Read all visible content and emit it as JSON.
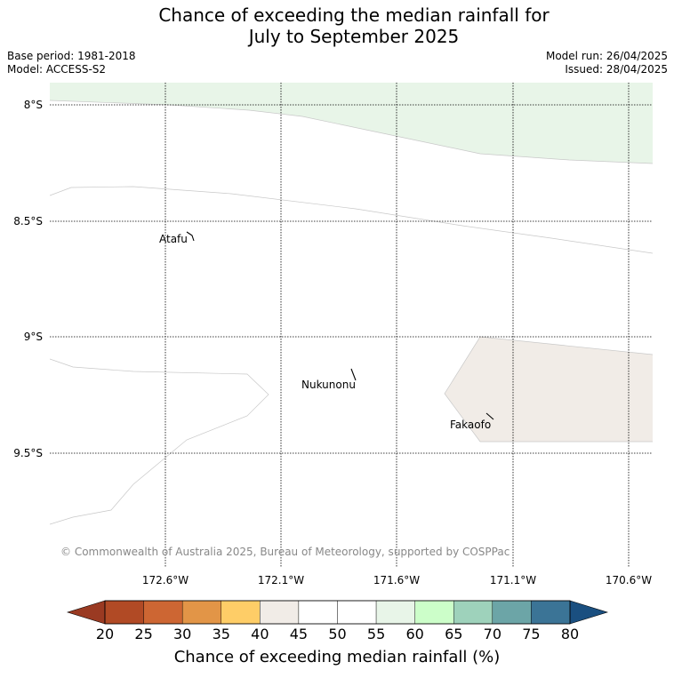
{
  "title_line1": "Chance of exceeding the median rainfall for",
  "title_line2": "July to September 2025",
  "base_period": "Base period: 1981-2018",
  "model": "Model: ACCESS-S2",
  "model_run": "Model run: 26/04/2025",
  "issued": "Issued: 28/04/2025",
  "lat_labels": [
    "8°S",
    "8.5°S",
    "9°S",
    "9.5°S"
  ],
  "lon_labels": [
    "172.6°W",
    "172.1°W",
    "171.6°W",
    "171.1°W",
    "170.6°W"
  ],
  "places": [
    "Atafu",
    "Nukunonu",
    "Fakaofo"
  ],
  "copyright": "© Commonwealth of Australia 2025, Bureau of Meteorology, supported by COSPPac",
  "colorbar": {
    "ticks": [
      "20",
      "25",
      "30",
      "35",
      "40",
      "45",
      "50",
      "55",
      "60",
      "65",
      "70",
      "75",
      "80"
    ],
    "label": "Chance of exceeding median rainfall (%)",
    "under_color": "#9a3a22",
    "over_color": "#1a4f80",
    "colors": [
      "#b14a25",
      "#cd6633",
      "#e29547",
      "#fecd67",
      "#f1ece7",
      "#ffffff",
      "#ffffff",
      "#e8f5e8",
      "#ccfec9",
      "#9ed2bb",
      "#6ca5a7",
      "#3b7496"
    ]
  },
  "map_fill": {
    "green_region_color": "#e8f5e8",
    "beige_region_color": "#f1ece7"
  }
}
